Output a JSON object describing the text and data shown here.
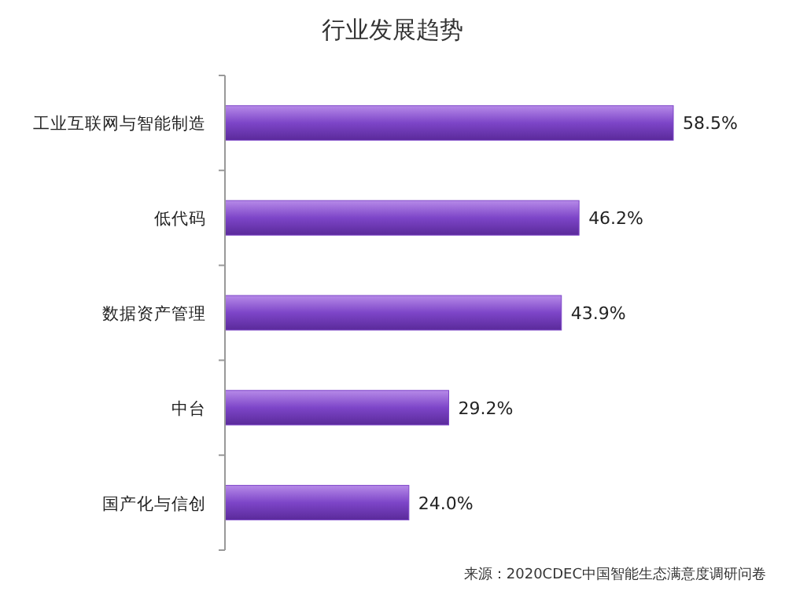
{
  "chart_data": {
    "type": "bar",
    "orientation": "horizontal",
    "title": "行业发展趋势",
    "categories": [
      "工业互联网与智能制造",
      "低代码",
      "数据资产管理",
      "中台",
      "国产化与信创"
    ],
    "values": [
      58.5,
      46.2,
      43.9,
      29.2,
      24.0
    ],
    "value_labels": [
      "58.5%",
      "46.2%",
      "43.9%",
      "29.2%",
      "24.0%"
    ],
    "color": "#7d45c8",
    "annotations": [
      "来源：2020CDEC中国智能生态满意度调研问卷"
    ]
  }
}
